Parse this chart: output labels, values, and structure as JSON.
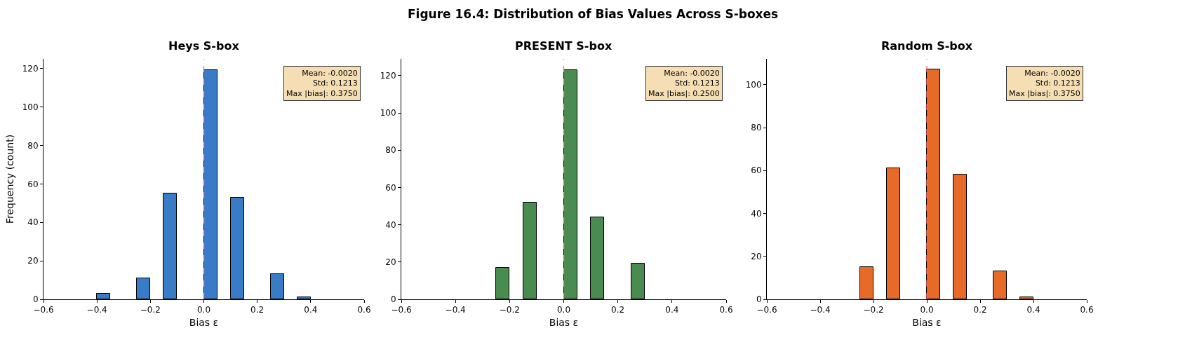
{
  "chart_data": [
    {
      "type": "histogram",
      "title": "Heys S-box",
      "xlabel": "Bias ε",
      "ylabel": "Frequency (count)",
      "bins": [
        -0.4,
        -0.35,
        -0.3,
        -0.25,
        -0.2,
        -0.15,
        -0.1,
        -0.05,
        0,
        0.05,
        0.1,
        0.15,
        0.2,
        0.25,
        0.3,
        0.35,
        0.4
      ],
      "values": [
        3,
        0,
        0,
        11,
        0,
        55,
        0,
        0,
        119,
        0,
        53,
        0,
        0,
        13,
        0,
        1
      ],
      "color": "#3a7bc8",
      "xlim": [
        -0.6,
        0.6
      ],
      "xticks": [
        {
          "value": -0.6,
          "label": "−0.6"
        },
        {
          "value": -0.4,
          "label": "−0.4"
        },
        {
          "value": -0.2,
          "label": "−0.2"
        },
        {
          "value": 0,
          "label": "0.0"
        },
        0.2,
        0.4,
        0.6
      ],
      "ylim": [
        0,
        125
      ],
      "yticks": [
        0,
        20,
        40,
        60,
        80,
        100,
        120
      ],
      "ref_lines": [
        {
          "axis": "x",
          "value": 0,
          "color": "#ff6666",
          "line_style": "dashed"
        }
      ],
      "annotations": [
        "Mean: -0.0020\nStd: 0.1213\nMax |bias|: 0.3750"
      ]
    },
    {
      "type": "histogram",
      "subtitle": "Figure 16.4: Distribution of Bias Values Across S-boxes",
      "title": "PRESENT S-box",
      "xlabel": "Bias ε",
      "bins": [
        -0.4,
        -0.35,
        -0.3,
        -0.25,
        -0.2,
        -0.15,
        -0.1,
        -0.05,
        0,
        0.05,
        0.1,
        0.15,
        0.2,
        0.25,
        0.3,
        0.35,
        0.4
      ],
      "values": [
        0,
        0,
        0,
        17,
        0,
        52,
        0,
        0,
        123,
        0,
        44,
        0,
        0,
        19,
        0,
        0
      ],
      "color": "#4a8c4f",
      "xlim": [
        -0.6,
        0.6
      ],
      "xticks": [
        {
          "value": -0.6,
          "label": "−0.6"
        },
        {
          "value": -0.4,
          "label": "−0.4"
        },
        {
          "value": -0.2,
          "label": "−0.2"
        },
        {
          "value": 0,
          "label": "0.0"
        },
        0.2,
        0.4,
        0.6
      ],
      "ylim": [
        0,
        129
      ],
      "yticks": [
        0,
        20,
        40,
        60,
        80,
        100,
        120
      ],
      "ref_lines": [
        {
          "axis": "x",
          "value": 0,
          "color": "#ff6666",
          "line_style": "dashed"
        }
      ],
      "annotations": [
        "Mean: -0.0020\nStd: 0.1213\nMax |bias|: 0.2500"
      ]
    },
    {
      "type": "histogram",
      "title": "Random S-box",
      "xlabel": "Bias ε",
      "bins": [
        -0.4,
        -0.35,
        -0.3,
        -0.25,
        -0.2,
        -0.15,
        -0.1,
        -0.05,
        0,
        0.05,
        0.1,
        0.15,
        0.2,
        0.25,
        0.3,
        0.35,
        0.4
      ],
      "values": [
        0,
        0,
        0,
        15,
        0,
        61,
        0,
        0,
        107,
        0,
        58,
        0,
        0,
        13,
        0,
        1
      ],
      "color": "#e86a28",
      "xlim": [
        -0.6,
        0.6
      ],
      "xticks": [
        {
          "value": -0.6,
          "label": "−0.6"
        },
        {
          "value": -0.4,
          "label": "−0.4"
        },
        {
          "value": -0.2,
          "label": "−0.2"
        },
        {
          "value": 0,
          "label": "0.0"
        },
        0.2,
        0.4,
        0.6
      ],
      "ylim": [
        0,
        112
      ],
      "yticks": [
        0,
        20,
        40,
        60,
        80,
        100
      ],
      "ref_lines": [
        {
          "axis": "x",
          "value": 0,
          "color": "#ff6666",
          "line_style": "dashed"
        }
      ],
      "annotations": [
        "Mean: -0.0020\nStd: 0.1213\nMax |bias|: 0.3750"
      ]
    }
  ]
}
